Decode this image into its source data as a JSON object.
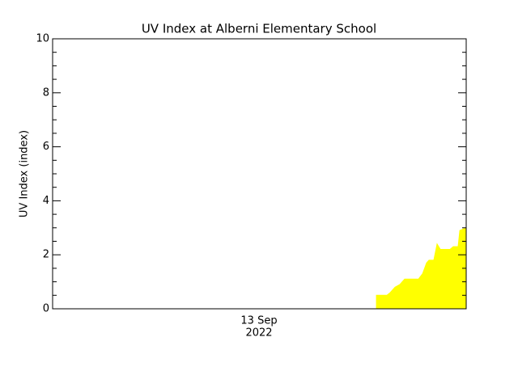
{
  "chart_data": {
    "type": "area",
    "title": "UV Index at Alberni Elementary School",
    "ylabel": "UV Index (index)",
    "xlabel_lines": [
      "13 Sep",
      "2022"
    ],
    "x": [
      18.79,
      19.4,
      19.59,
      19.87,
      20.15,
      20.43,
      21.23,
      21.47,
      21.7,
      21.84,
      22.12,
      22.31,
      22.5,
      23.06,
      23.25,
      23.53,
      23.63,
      24.0
    ],
    "values": [
      0.5,
      0.5,
      0.6,
      0.8,
      0.9,
      1.1,
      1.1,
      1.3,
      1.7,
      1.8,
      1.8,
      2.4,
      2.2,
      2.2,
      2.3,
      2.3,
      2.9,
      3.0
    ],
    "color": "#ffff00",
    "xlim": [
      0,
      24
    ],
    "ylim": [
      0,
      10
    ],
    "yticks": [
      0,
      2,
      4,
      6,
      8,
      10
    ]
  }
}
